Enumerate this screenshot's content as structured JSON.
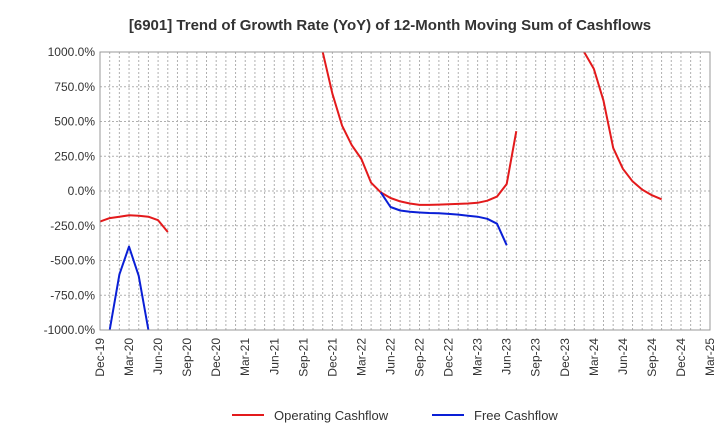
{
  "chart_data": {
    "type": "line",
    "title": "[6901]  Trend of Growth Rate (YoY) of 12-Month Moving Sum of Cashflows",
    "xlabel": "",
    "ylabel": "",
    "x_ticks": [
      "Dec-19",
      "Mar-20",
      "Jun-20",
      "Sep-20",
      "Dec-20",
      "Mar-21",
      "Jun-21",
      "Sep-21",
      "Dec-21",
      "Mar-22",
      "Jun-22",
      "Sep-22",
      "Dec-22",
      "Mar-23",
      "Jun-23",
      "Sep-23",
      "Dec-23",
      "Mar-24",
      "Jun-24",
      "Sep-24",
      "Dec-24",
      "Mar-25"
    ],
    "y_ticks": [
      "1000.0%",
      "750.0%",
      "500.0%",
      "250.0%",
      "0.0%",
      "-250.0%",
      "-500.0%",
      "-750.0%",
      "-1000.0%"
    ],
    "ylim": [
      -1000,
      1000
    ],
    "grid": true,
    "legend_position": "bottom",
    "series": [
      {
        "name": "Operating Cashflow",
        "color": "#e31a1c",
        "points": [
          [
            "Dec-19",
            -220
          ],
          [
            "Jan-20",
            -195
          ],
          [
            "Feb-20",
            -185
          ],
          [
            "Mar-20",
            -175
          ],
          [
            "Apr-20",
            -178
          ],
          [
            "May-20",
            -185
          ],
          [
            "Jun-20",
            -210
          ],
          [
            "Jul-20",
            -295
          ],
          null,
          [
            "Nov-21",
            1000
          ],
          [
            "Dec-21",
            700
          ],
          [
            "Jan-22",
            470
          ],
          [
            "Feb-22",
            330
          ],
          [
            "Mar-22",
            230
          ],
          [
            "Apr-22",
            60
          ],
          [
            "May-22",
            -10
          ],
          [
            "Jun-22",
            -50
          ],
          [
            "Jul-22",
            -75
          ],
          [
            "Aug-22",
            -90
          ],
          [
            "Sep-22",
            -100
          ],
          [
            "Oct-22",
            -100
          ],
          [
            "Nov-22",
            -98
          ],
          [
            "Dec-22",
            -95
          ],
          [
            "Jan-23",
            -93
          ],
          [
            "Feb-23",
            -90
          ],
          [
            "Mar-23",
            -85
          ],
          [
            "Apr-23",
            -70
          ],
          [
            "May-23",
            -40
          ],
          [
            "Jun-23",
            50
          ],
          [
            "Jul-23",
            430
          ],
          null,
          [
            "Feb-24",
            1000
          ],
          [
            "Mar-24",
            880
          ],
          [
            "Apr-24",
            650
          ],
          [
            "May-24",
            310
          ],
          [
            "Jun-24",
            160
          ],
          [
            "Jul-24",
            70
          ],
          [
            "Aug-24",
            10
          ],
          [
            "Sep-24",
            -30
          ],
          [
            "Oct-24",
            -60
          ]
        ]
      },
      {
        "name": "Free Cashflow",
        "color": "#0a1fd6",
        "points": [
          [
            "Jan-20",
            -1000
          ],
          [
            "Feb-20",
            -600
          ],
          [
            "Mar-20",
            -400
          ],
          [
            "Apr-20",
            -610
          ],
          [
            "May-20",
            -1000
          ],
          null,
          [
            "May-22",
            -10
          ],
          [
            "Jun-22",
            -115
          ],
          [
            "Jul-22",
            -140
          ],
          [
            "Aug-22",
            -150
          ],
          [
            "Sep-22",
            -155
          ],
          [
            "Oct-22",
            -158
          ],
          [
            "Nov-22",
            -160
          ],
          [
            "Dec-22",
            -165
          ],
          [
            "Jan-23",
            -170
          ],
          [
            "Feb-23",
            -178
          ],
          [
            "Mar-23",
            -185
          ],
          [
            "Apr-23",
            -200
          ],
          [
            "May-23",
            -235
          ],
          [
            "Jun-23",
            -390
          ]
        ]
      }
    ]
  }
}
